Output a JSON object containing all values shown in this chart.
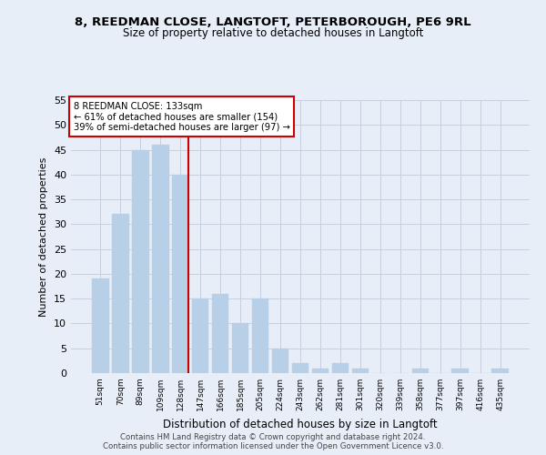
{
  "title_line1": "8, REEDMAN CLOSE, LANGTOFT, PETERBOROUGH, PE6 9RL",
  "title_line2": "Size of property relative to detached houses in Langtoft",
  "xlabel": "Distribution of detached houses by size in Langtoft",
  "ylabel": "Number of detached properties",
  "categories": [
    "51sqm",
    "70sqm",
    "89sqm",
    "109sqm",
    "128sqm",
    "147sqm",
    "166sqm",
    "185sqm",
    "205sqm",
    "224sqm",
    "243sqm",
    "262sqm",
    "281sqm",
    "301sqm",
    "320sqm",
    "339sqm",
    "358sqm",
    "377sqm",
    "397sqm",
    "416sqm",
    "435sqm"
  ],
  "values": [
    19,
    32,
    45,
    46,
    40,
    15,
    16,
    10,
    15,
    5,
    2,
    1,
    2,
    1,
    0,
    0,
    1,
    0,
    1,
    0,
    1
  ],
  "bar_color": "#b8cfe8",
  "bar_edge_color": "#b8cfe8",
  "ref_line_color": "#cc0000",
  "annotation_line1": "8 REEDMAN CLOSE: 133sqm",
  "annotation_line2": "← 61% of detached houses are smaller (154)",
  "annotation_line3": "39% of semi-detached houses are larger (97) →",
  "annotation_box_color": "#ffffff",
  "annotation_box_edge_color": "#cc0000",
  "ylim": [
    0,
    55
  ],
  "yticks": [
    0,
    5,
    10,
    15,
    20,
    25,
    30,
    35,
    40,
    45,
    50,
    55
  ],
  "footer_line1": "Contains HM Land Registry data © Crown copyright and database right 2024.",
  "footer_line2": "Contains public sector information licensed under the Open Government Licence v3.0.",
  "background_color": "#e8eef8",
  "grid_color": "#c8d0e0"
}
